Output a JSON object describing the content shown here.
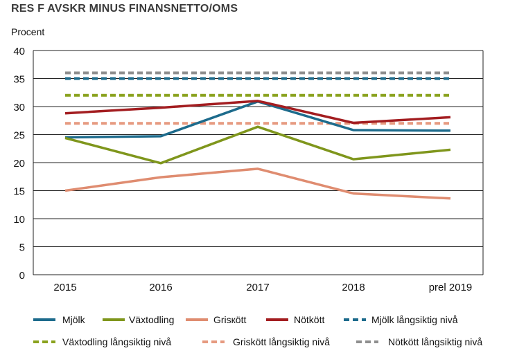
{
  "title": "RES F AVSKR MINUS FINANSNETTO/OMS",
  "colors": {
    "mjolk": "#1d6b8c",
    "vaxtodling": "#7f961c",
    "griskott": "#df8c70",
    "notkott": "#a31d20",
    "mjolk_lang": "#1d6b8c",
    "vaxtodling_lang": "#8aa21e",
    "griskott_lang": "#e69a80",
    "notkott_lang": "#8f8f8f",
    "axis_text": "#111111",
    "grid": "#222222"
  },
  "chart_data": {
    "type": "line",
    "title": "RES F AVSKR MINUS FINANSNETTO/OMS",
    "ylabel": "Procent",
    "xlabel": "",
    "categories": [
      "2015",
      "2016",
      "2017",
      "2018",
      "prel 2019"
    ],
    "ylim": [
      0,
      40
    ],
    "yticks": [
      0,
      5,
      10,
      15,
      20,
      25,
      30,
      35,
      40
    ],
    "grid": true,
    "legend_position": "bottom",
    "series": [
      {
        "name": "Mjölk",
        "key": "mjolk",
        "style": "solid",
        "values": [
          24.5,
          24.7,
          30.9,
          25.8,
          25.7
        ]
      },
      {
        "name": "Växtodling",
        "key": "vaxtodling",
        "style": "solid",
        "values": [
          24.4,
          19.9,
          26.4,
          20.6,
          22.3
        ]
      },
      {
        "name": "Grisкött",
        "key": "griskott",
        "style": "solid",
        "values": [
          15.0,
          17.4,
          18.9,
          14.5,
          13.6
        ]
      },
      {
        "name": "Nötkött",
        "key": "notkott",
        "style": "solid",
        "values": [
          28.8,
          29.8,
          31.0,
          27.1,
          28.1
        ]
      },
      {
        "name": "Mjölk långsiktig nivå",
        "key": "mjolk_lang",
        "style": "dashed",
        "values": [
          35,
          35,
          35,
          35,
          35
        ]
      },
      {
        "name": "Växtodling långsiktig nivå",
        "key": "vaxtodling_lang",
        "style": "dashed",
        "values": [
          32,
          32,
          32,
          32,
          32
        ]
      },
      {
        "name": "Griskött långsiktig nivå",
        "key": "griskott_lang",
        "style": "dashed",
        "values": [
          27,
          27,
          27,
          27,
          27
        ]
      },
      {
        "name": "Nötkött långsiktig nivå",
        "key": "notkott_lang",
        "style": "dashed",
        "values": [
          36,
          36,
          36,
          36,
          36
        ]
      }
    ]
  }
}
